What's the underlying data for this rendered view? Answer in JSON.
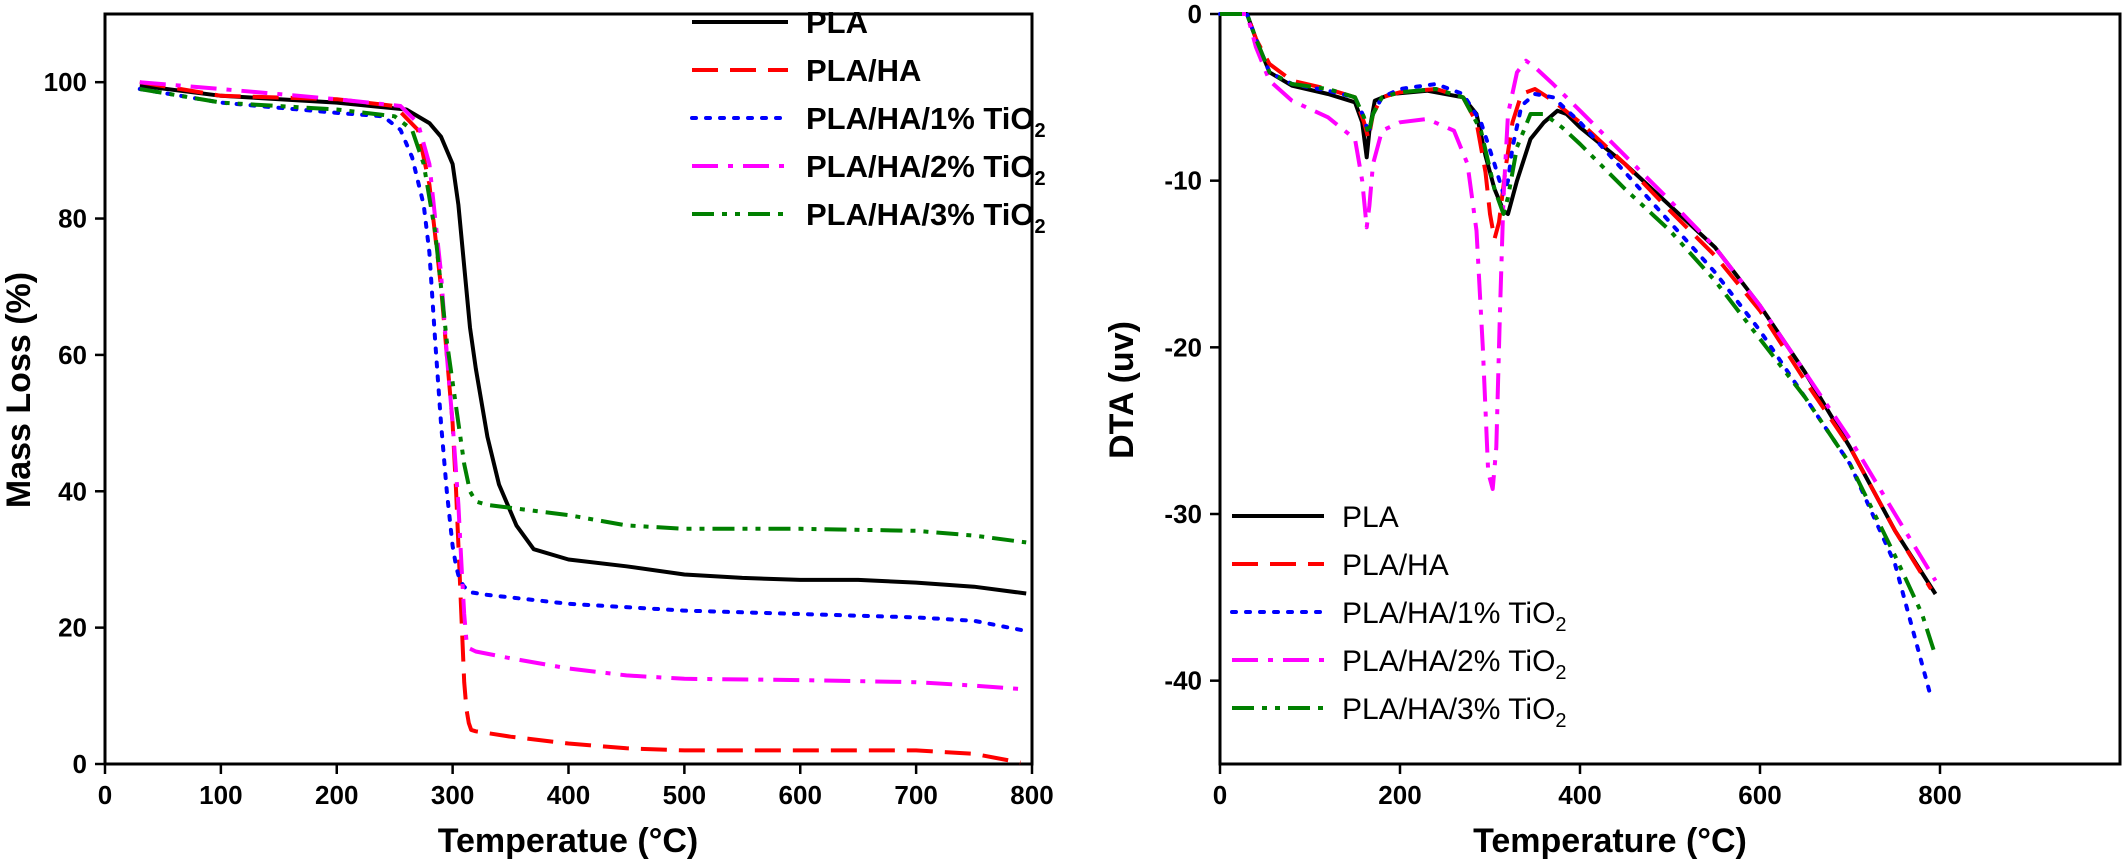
{
  "chart_data": [
    {
      "type": "line",
      "xlabel": "Temperatue (°C)",
      "ylabel": "Mass Loss (%)",
      "xlim": [
        0,
        800
      ],
      "ylim": [
        0,
        110
      ],
      "x_ticks": [
        "0",
        "100",
        "200",
        "300",
        "400",
        "500",
        "600",
        "700",
        "800"
      ],
      "y_ticks": [
        "0",
        "20",
        "40",
        "60",
        "80",
        "100"
      ],
      "grid": false,
      "legend_position": "top-right",
      "series": [
        {
          "name": "PLA",
          "color": "#000000",
          "dash": "solid",
          "x": [
            30,
            100,
            200,
            260,
            280,
            290,
            300,
            305,
            310,
            315,
            320,
            330,
            340,
            355,
            370,
            400,
            450,
            500,
            550,
            600,
            650,
            700,
            750,
            795
          ],
          "y": [
            99.5,
            98,
            97,
            96,
            94,
            92,
            88,
            82,
            73,
            64,
            58,
            48,
            41,
            35,
            31.5,
            30,
            29,
            27.8,
            27.3,
            27,
            27,
            26.6,
            26,
            25
          ]
        },
        {
          "name": "PLA/HA",
          "color": "#ff0000",
          "dash": "dashed",
          "x": [
            30,
            100,
            200,
            250,
            270,
            280,
            290,
            295,
            300,
            303,
            306,
            308,
            310,
            312,
            314,
            316,
            320,
            350,
            400,
            450,
            500,
            600,
            700,
            750,
            790
          ],
          "y": [
            100,
            98,
            97.5,
            96.5,
            93,
            85,
            70,
            60,
            50,
            40,
            28,
            20,
            12,
            8,
            6,
            5,
            4.8,
            4,
            3,
            2.3,
            2,
            2,
            2,
            1.5,
            0.2
          ]
        },
        {
          "name": "PLA/HA/1% TiO2",
          "color": "#0000ff",
          "dash": "dotted",
          "x": [
            30,
            100,
            200,
            240,
            255,
            265,
            275,
            280,
            285,
            290,
            295,
            300,
            303,
            306,
            310,
            315,
            330,
            400,
            500,
            600,
            700,
            750,
            795
          ],
          "y": [
            99,
            97,
            95.5,
            95,
            93,
            89,
            82,
            75,
            62,
            50,
            40,
            32,
            29,
            27,
            26,
            25.2,
            24.8,
            23.5,
            22.5,
            22,
            21.5,
            21,
            19.5
          ]
        },
        {
          "name": "PLA/HA/2% TiO2",
          "color": "#ff00ff",
          "dash": "dashdot",
          "x": [
            30,
            100,
            200,
            255,
            270,
            280,
            290,
            295,
            300,
            305,
            308,
            310,
            312,
            314,
            320,
            350,
            400,
            450,
            500,
            600,
            700,
            750,
            790
          ],
          "y": [
            100,
            99,
            97.5,
            96.5,
            94,
            88,
            72,
            60,
            50,
            38,
            28,
            22,
            18,
            17,
            16.5,
            15.5,
            14,
            13,
            12.5,
            12.3,
            12,
            11.5,
            11
          ]
        },
        {
          "name": "PLA/HA/3% TiO2",
          "color": "#008000",
          "dash": "dashdotdot",
          "x": [
            30,
            100,
            200,
            250,
            265,
            275,
            285,
            290,
            295,
            300,
            305,
            310,
            315,
            320,
            330,
            400,
            450,
            500,
            600,
            700,
            750,
            795
          ],
          "y": [
            99,
            97,
            96,
            95,
            93,
            88,
            78,
            70,
            62,
            56,
            50,
            44,
            40,
            38.5,
            38,
            36.5,
            35,
            34.5,
            34.5,
            34.2,
            33.5,
            32.5
          ]
        }
      ]
    },
    {
      "type": "line",
      "xlabel": "Temperature (°C)",
      "ylabel": "DTA (uv)",
      "xlim": [
        0,
        1000
      ],
      "ylim": [
        -45,
        0
      ],
      "x_ticks": [
        "0",
        "200",
        "400",
        "600",
        "800"
      ],
      "y_ticks": [
        "0",
        "-10",
        "-20",
        "-30",
        "-40"
      ],
      "grid": false,
      "legend_position": "bottom-left",
      "series": [
        {
          "name": "PLA",
          "color": "#000000",
          "dash": "solid",
          "x": [
            0,
            30,
            40,
            55,
            80,
            120,
            150,
            158,
            163,
            166,
            172,
            190,
            230,
            270,
            285,
            295,
            305,
            315,
            320,
            330,
            345,
            360,
            375,
            385,
            400,
            450,
            500,
            550,
            600,
            650,
            700,
            750,
            795
          ],
          "y": [
            0,
            0,
            -1.5,
            -3.5,
            -4.3,
            -4.8,
            -5.3,
            -6.5,
            -8.6,
            -7,
            -5.2,
            -4.8,
            -4.6,
            -5,
            -6,
            -8.5,
            -10.5,
            -11.8,
            -12,
            -10,
            -7.5,
            -6.5,
            -5.8,
            -6,
            -6.8,
            -9,
            -11.5,
            -14,
            -17.5,
            -21.5,
            -26,
            -31,
            -34.8
          ]
        },
        {
          "name": "PLA/HA",
          "color": "#ff0000",
          "dash": "dashed",
          "x": [
            0,
            30,
            40,
            55,
            80,
            120,
            150,
            160,
            165,
            170,
            180,
            200,
            240,
            270,
            285,
            295,
            300,
            305,
            310,
            318,
            325,
            335,
            350,
            370,
            400,
            450,
            500,
            550,
            600,
            650,
            700,
            750,
            790
          ],
          "y": [
            0,
            0,
            -1.5,
            -3,
            -4,
            -4.5,
            -5,
            -6.5,
            -7.5,
            -6,
            -5,
            -4.7,
            -4.5,
            -5,
            -6.5,
            -9.5,
            -12,
            -13.5,
            -12.5,
            -9,
            -6.5,
            -4.8,
            -4.5,
            -5.2,
            -6.5,
            -9,
            -11.8,
            -14.5,
            -17.8,
            -22,
            -26,
            -31,
            -34.5
          ]
        },
        {
          "name": "PLA/HA/1% TiO2",
          "color": "#0000ff",
          "dash": "dotted",
          "x": [
            0,
            30,
            40,
            55,
            80,
            120,
            150,
            160,
            165,
            170,
            180,
            200,
            240,
            270,
            290,
            305,
            315,
            320,
            325,
            335,
            350,
            370,
            400,
            450,
            500,
            550,
            600,
            650,
            700,
            750,
            770,
            790
          ],
          "y": [
            0,
            0,
            -1.5,
            -3.5,
            -4.2,
            -4.6,
            -5,
            -6.2,
            -7.2,
            -6,
            -5,
            -4.5,
            -4.2,
            -4.8,
            -6.5,
            -9,
            -10.8,
            -10,
            -8,
            -5.5,
            -4.8,
            -5,
            -6.5,
            -9.5,
            -12.5,
            -15.5,
            -19,
            -23,
            -27,
            -33,
            -37,
            -41
          ]
        },
        {
          "name": "PLA/HA/2% TiO2",
          "color": "#ff00ff",
          "dash": "dashdot",
          "x": [
            0,
            30,
            40,
            55,
            80,
            120,
            150,
            158,
            163,
            166,
            170,
            180,
            200,
            230,
            260,
            275,
            285,
            292,
            298,
            303,
            307,
            311,
            315,
            320,
            330,
            340,
            350,
            370,
            400,
            450,
            500,
            550,
            600,
            650,
            700,
            750,
            795
          ],
          "y": [
            0,
            0,
            -2,
            -4,
            -5.2,
            -6.2,
            -7.5,
            -10,
            -12.8,
            -11.5,
            -9,
            -7,
            -6.5,
            -6.3,
            -7,
            -9,
            -13,
            -20,
            -27.5,
            -28.5,
            -26,
            -18,
            -11,
            -6,
            -3.5,
            -2.8,
            -3.2,
            -4.2,
            -5.8,
            -8.5,
            -11.2,
            -14,
            -17.5,
            -21.5,
            -25.5,
            -30,
            -34
          ]
        },
        {
          "name": "PLA/HA/3% TiO2",
          "color": "#008000",
          "dash": "dashdotdot",
          "x": [
            0,
            30,
            40,
            55,
            80,
            120,
            150,
            160,
            165,
            170,
            180,
            200,
            240,
            270,
            290,
            305,
            315,
            320,
            330,
            345,
            360,
            380,
            400,
            450,
            500,
            550,
            600,
            650,
            700,
            750,
            780,
            795
          ],
          "y": [
            0,
            0,
            -1.5,
            -3.5,
            -4.2,
            -4.5,
            -5,
            -6.2,
            -7.2,
            -6,
            -5,
            -4.7,
            -4.5,
            -5,
            -7,
            -10.5,
            -12,
            -11,
            -8,
            -6,
            -6,
            -6.8,
            -7.8,
            -10.5,
            -13,
            -16,
            -19.5,
            -23,
            -27,
            -32.5,
            -36,
            -38.5
          ]
        }
      ]
    }
  ]
}
